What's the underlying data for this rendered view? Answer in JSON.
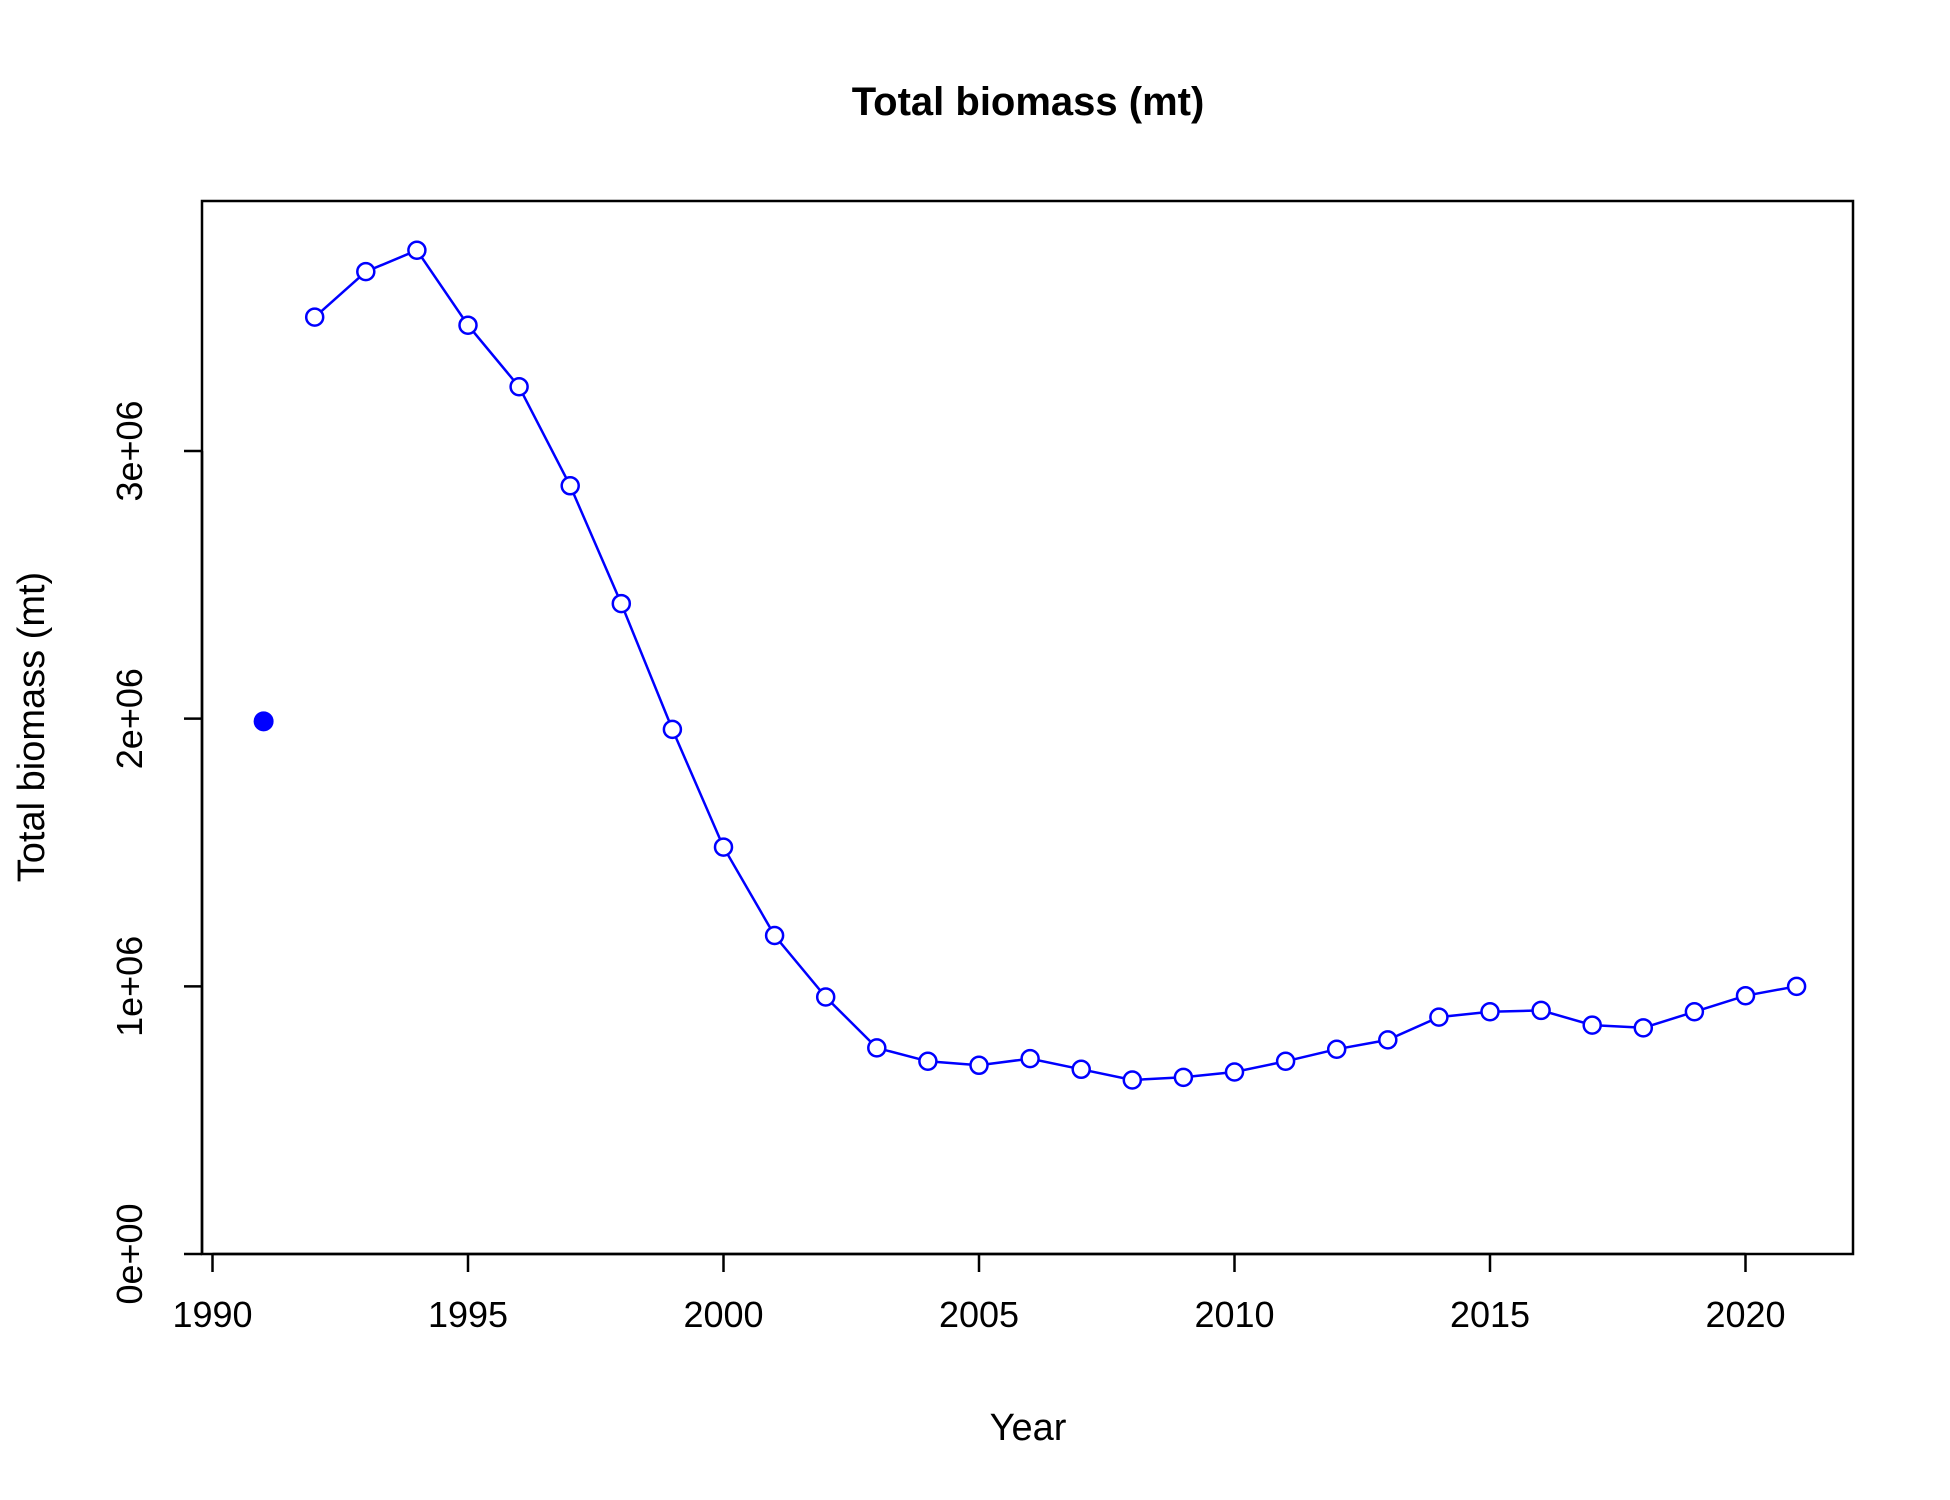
{
  "chart_data": {
    "type": "line",
    "title": "Total biomass (mt)",
    "xlabel": "Year",
    "ylabel": "Total biomass (mt)",
    "xlim": [
      1989.9,
      1992.4
    ],
    "ylim": [
      0,
      3950000
    ],
    "x_ticks": [
      1990,
      1995,
      2000,
      2005,
      2010,
      2015,
      2020
    ],
    "x_tick_labels": [
      "1990",
      "1995",
      "2000",
      "2005",
      "2010",
      "2015",
      "2020"
    ],
    "y_ticks": [
      0,
      1000000,
      2000000,
      3000000
    ],
    "y_tick_labels": [
      "0e+00",
      "1e+06",
      "2e+06",
      "3e+06"
    ],
    "grid": false,
    "legend": "none",
    "colors": {
      "series": "#0000ff"
    },
    "initial_point": {
      "x": 1991,
      "y": 1990000
    },
    "series": [
      {
        "x": [
          1992,
          1993,
          1994,
          1995,
          1996,
          1997,
          1998,
          1999,
          2000,
          2001,
          2002,
          2003,
          2004,
          2005,
          2006,
          2007,
          2008,
          2009,
          2010,
          2011,
          2012,
          2013,
          2014,
          2015,
          2016,
          2017,
          2018,
          2019,
          2020,
          2021
        ],
        "values": [
          3500000,
          3670000,
          3750000,
          3470000,
          3240000,
          2870000,
          2430000,
          1960000,
          1520000,
          1190000,
          960000,
          770000,
          720000,
          705000,
          730000,
          690000,
          650000,
          660000,
          680000,
          720000,
          765000,
          800000,
          885000,
          905000,
          910000,
          855000,
          845000,
          905000,
          965000,
          1000000
        ]
      }
    ]
  }
}
